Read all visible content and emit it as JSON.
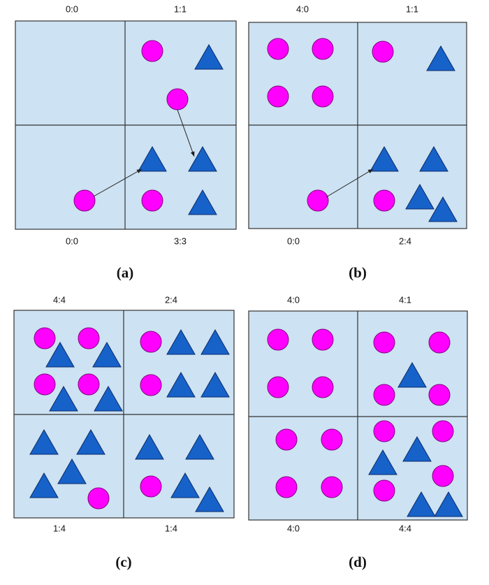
{
  "panels": [
    {
      "caption": "(a)",
      "labels": [
        "0:0",
        "1:1",
        "0:0",
        "3:3"
      ]
    },
    {
      "caption": "(b)",
      "labels": [
        "4:0",
        "1:1",
        "0:0",
        "2:4"
      ]
    },
    {
      "caption": "(c)",
      "labels": [
        "4:4",
        "2:4",
        "1:4",
        "1:4"
      ]
    },
    {
      "caption": "(d)",
      "labels": [
        "4:0",
        "4:1",
        "4:0",
        "4:4"
      ]
    }
  ]
}
